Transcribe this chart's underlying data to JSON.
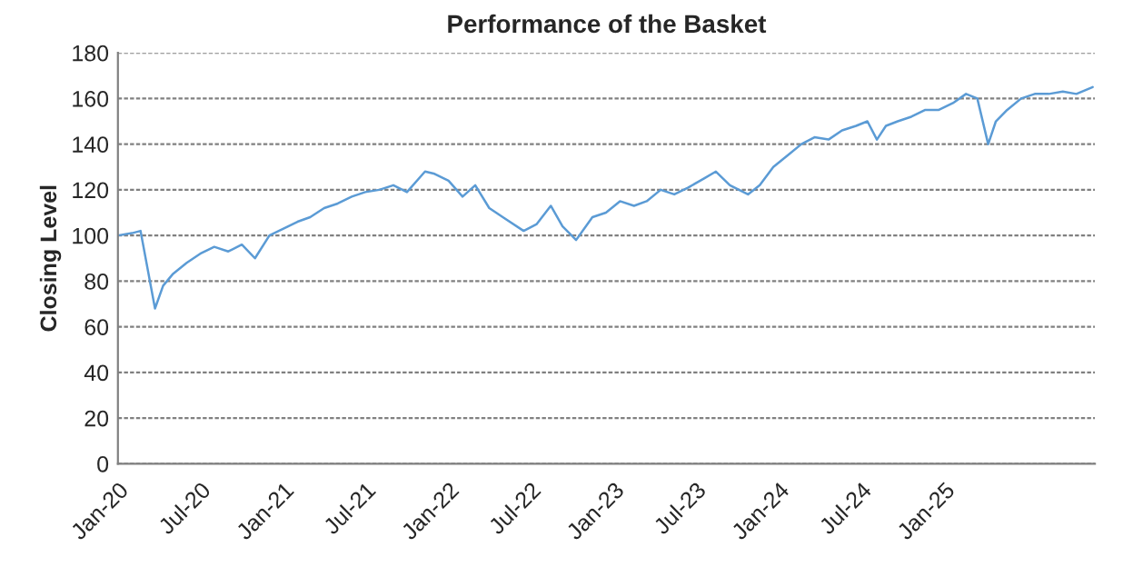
{
  "chart_data": {
    "type": "line",
    "title": "Performance of the Basket",
    "ylabel": "Closing Level",
    "x": [
      "2020-01-01",
      "2020-02-01",
      "2020-02-20",
      "2020-03-23",
      "2020-04-10",
      "2020-05-01",
      "2020-06-01",
      "2020-07-01",
      "2020-08-01",
      "2020-09-01",
      "2020-10-01",
      "2020-10-30",
      "2020-12-01",
      "2021-01-01",
      "2021-02-01",
      "2021-03-01",
      "2021-04-01",
      "2021-05-01",
      "2021-06-01",
      "2021-07-01",
      "2021-08-01",
      "2021-09-01",
      "2021-10-01",
      "2021-11-10",
      "2021-12-01",
      "2022-01-01",
      "2022-02-01",
      "2022-03-01",
      "2022-04-01",
      "2022-05-01",
      "2022-06-16",
      "2022-07-15",
      "2022-08-15",
      "2022-09-10",
      "2022-10-10",
      "2022-11-15",
      "2022-12-15",
      "2023-01-15",
      "2023-02-15",
      "2023-03-15",
      "2023-04-15",
      "2023-05-15",
      "2023-06-15",
      "2023-07-20",
      "2023-08-15",
      "2023-09-15",
      "2023-10-25",
      "2023-11-20",
      "2023-12-20",
      "2024-01-20",
      "2024-02-20",
      "2024-03-20",
      "2024-04-20",
      "2024-05-20",
      "2024-06-20",
      "2024-07-15",
      "2024-08-05",
      "2024-08-25",
      "2024-09-20",
      "2024-10-20",
      "2024-11-20",
      "2024-12-20",
      "2025-01-20",
      "2025-02-18",
      "2025-03-15",
      "2025-04-08",
      "2025-04-25",
      "2025-05-20",
      "2025-06-20",
      "2025-07-20",
      "2025-08-20",
      "2025-09-20",
      "2025-10-20",
      "2025-11-25"
    ],
    "values": [
      100,
      101,
      102,
      68,
      78,
      83,
      88,
      92,
      95,
      93,
      96,
      90,
      100,
      103,
      106,
      108,
      112,
      114,
      117,
      119,
      120,
      122,
      119,
      128,
      127,
      124,
      117,
      122,
      112,
      108,
      102,
      105,
      113,
      104,
      98,
      108,
      110,
      115,
      113,
      115,
      120,
      118,
      121,
      125,
      128,
      122,
      118,
      122,
      130,
      135,
      140,
      143,
      142,
      146,
      148,
      150,
      142,
      148,
      150,
      152,
      155,
      155,
      158,
      162,
      160,
      140,
      150,
      155,
      160,
      162,
      162,
      163,
      162,
      165
    ],
    "color": "#5b9bd5",
    "xlim": [
      "2020-01-01",
      "2025-11-30"
    ],
    "xticks": [
      {
        "value": "2020-01-01",
        "label": "Jan-20"
      },
      {
        "value": "2020-07-01",
        "label": "Jul-20"
      },
      {
        "value": "2021-01-01",
        "label": "Jan-21"
      },
      {
        "value": "2021-07-01",
        "label": "Jul-21"
      },
      {
        "value": "2022-01-01",
        "label": "Jan-22"
      },
      {
        "value": "2022-07-01",
        "label": "Jul-22"
      },
      {
        "value": "2023-01-01",
        "label": "Jan-23"
      },
      {
        "value": "2023-07-01",
        "label": "Jul-23"
      },
      {
        "value": "2024-01-01",
        "label": "Jan-24"
      },
      {
        "value": "2024-07-01",
        "label": "Jul-24"
      },
      {
        "value": "2025-01-01",
        "label": "Jan-25"
      }
    ],
    "ylim": [
      0,
      180
    ],
    "yticks": [
      0,
      20,
      40,
      60,
      80,
      100,
      120,
      140,
      160,
      180
    ],
    "grid": "y",
    "marker": "none",
    "line_style": "solid"
  }
}
